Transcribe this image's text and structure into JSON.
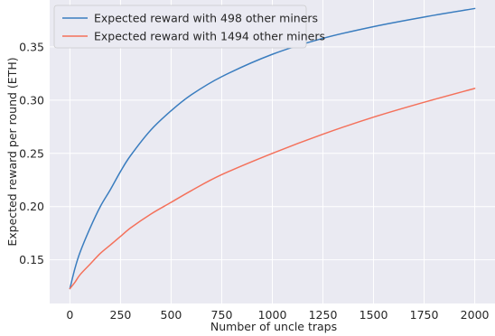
{
  "chart_data": {
    "type": "line",
    "xlabel": "Number of uncle traps",
    "ylabel": "Expected reward per round (ETH)",
    "xlim": [
      -100,
      2100
    ],
    "ylim": [
      0.109,
      0.394
    ],
    "xticks": [
      0,
      250,
      500,
      750,
      1000,
      1250,
      1500,
      1750,
      2000
    ],
    "yticks": [
      0.15,
      0.2,
      0.25,
      0.3,
      0.35
    ],
    "ytick_labels": [
      "0.15",
      "0.20",
      "0.25",
      "0.30",
      "0.35"
    ],
    "grid": true,
    "legend_position": "top-left",
    "series": [
      {
        "name": "Expected reward with 498 other miners",
        "color": "#3a7dbf",
        "x": [
          0,
          25,
          50,
          100,
          150,
          200,
          250,
          300,
          400,
          500,
          600,
          750,
          1000,
          1250,
          1500,
          1750,
          2000
        ],
        "y": [
          0.123,
          0.142,
          0.157,
          0.18,
          0.2,
          0.216,
          0.233,
          0.248,
          0.272,
          0.29,
          0.305,
          0.322,
          0.343,
          0.358,
          0.369,
          0.378,
          0.386
        ]
      },
      {
        "name": "Expected reward with 1494 other miners",
        "color": "#f4715b",
        "x": [
          0,
          25,
          50,
          100,
          150,
          200,
          250,
          300,
          400,
          500,
          600,
          750,
          1000,
          1250,
          1500,
          1750,
          2000
        ],
        "y": [
          0.123,
          0.129,
          0.136,
          0.146,
          0.156,
          0.164,
          0.172,
          0.18,
          0.193,
          0.204,
          0.215,
          0.23,
          0.25,
          0.268,
          0.284,
          0.298,
          0.311
        ]
      }
    ]
  }
}
